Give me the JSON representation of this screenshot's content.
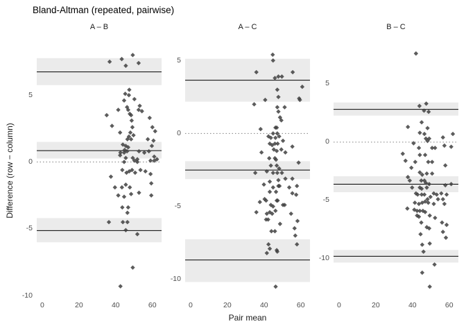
{
  "colors": {
    "background": "#ffffff",
    "point": "#404040",
    "ci_band": "#ebebeb",
    "loa_line": "#000000",
    "zero_line": "#7f7f7f",
    "axis_text": "#4d4d4d",
    "facet_text": "#1a1a1a",
    "title_text": "#000000"
  },
  "chart_data": {
    "type": "scatter",
    "title": "Bland-Altman (repeated, pairwise)",
    "xlabel": "Pair mean",
    "ylabel": "Difference (row − column)",
    "marker": "diamond",
    "grid": "off",
    "legend": "none",
    "xlim": [
      -3,
      65
    ],
    "x_ticks": [
      0,
      20,
      40,
      60
    ],
    "panels": [
      {
        "label": "A – B",
        "ylim": [
          -10.2,
          8.9
        ],
        "y_ticks": [
          5,
          0,
          -5,
          -10
        ],
        "zero_line": 0,
        "mean_line": {
          "value": 0.85,
          "ci": [
            0.26,
            1.5
          ]
        },
        "upper_loa": {
          "value": 6.74,
          "ci": [
            5.75,
            7.77
          ]
        },
        "lower_loa": {
          "value": -5.13,
          "ci": [
            -6.01,
            -4.2
          ]
        },
        "points": [
          [
            36.7,
            7.5
          ],
          [
            43.3,
            7.7
          ],
          [
            49.3,
            8.0
          ],
          [
            45.5,
            7.2
          ],
          [
            52.5,
            7.4
          ],
          [
            47.4,
            5.4
          ],
          [
            45.2,
            5.1
          ],
          [
            47.2,
            5.0
          ],
          [
            44.6,
            4.6
          ],
          [
            50.2,
            4.7
          ],
          [
            53.1,
            4.2
          ],
          [
            46.2,
            4.1
          ],
          [
            46.8,
            3.9
          ],
          [
            41.4,
            3.9
          ],
          [
            52.5,
            3.9
          ],
          [
            54.3,
            3.8
          ],
          [
            35.1,
            3.5
          ],
          [
            47.7,
            3.6
          ],
          [
            48.4,
            3.5
          ],
          [
            58.5,
            3.3
          ],
          [
            38.0,
            2.7
          ],
          [
            48.7,
            3.1
          ],
          [
            49.1,
            2.6
          ],
          [
            60.0,
            2.6
          ],
          [
            61.5,
            2.3
          ],
          [
            42.4,
            2.2
          ],
          [
            48.0,
            2.2
          ],
          [
            49.7,
            2.0
          ],
          [
            47.2,
            1.9
          ],
          [
            48.4,
            1.7
          ],
          [
            46.4,
            1.7
          ],
          [
            57.5,
            1.7
          ],
          [
            60.6,
            1.6
          ],
          [
            43.9,
            1.3
          ],
          [
            45.5,
            1.2
          ],
          [
            46.8,
            1.1
          ],
          [
            44.9,
            0.9
          ],
          [
            42.6,
            0.7
          ],
          [
            44.6,
            0.7
          ],
          [
            46.2,
            0.8
          ],
          [
            52.7,
            0.8
          ],
          [
            55.6,
            0.7
          ],
          [
            58.1,
            0.8
          ],
          [
            59.7,
            1.2
          ],
          [
            42.4,
            0.5
          ],
          [
            45.5,
            0.3
          ],
          [
            49.3,
            0.3
          ],
          [
            51.8,
            0.2
          ],
          [
            61.0,
            0.4
          ],
          [
            62.5,
            0.2
          ],
          [
            44.6,
            0.0
          ],
          [
            50.2,
            0.1
          ],
          [
            51.8,
            0.0
          ],
          [
            59.0,
            0.1
          ],
          [
            61.0,
            0.1
          ],
          [
            37.4,
            -1.1
          ],
          [
            43.6,
            -0.6
          ],
          [
            45.9,
            -0.8
          ],
          [
            47.4,
            -0.7
          ],
          [
            48.9,
            -0.6
          ],
          [
            50.6,
            -0.8
          ],
          [
            53.5,
            -0.6
          ],
          [
            56.2,
            -0.7
          ],
          [
            59.0,
            -0.9
          ],
          [
            39.6,
            -1.9
          ],
          [
            43.4,
            -1.9
          ],
          [
            45.5,
            -1.7
          ],
          [
            47.7,
            -1.9
          ],
          [
            52.7,
            -2.3
          ],
          [
            59.4,
            -1.6
          ],
          [
            41.4,
            -2.5
          ],
          [
            44.6,
            -2.6
          ],
          [
            48.4,
            -2.4
          ],
          [
            59.4,
            -2.5
          ],
          [
            43.6,
            -3.4
          ],
          [
            46.8,
            -3.4
          ],
          [
            46.4,
            -3.8
          ],
          [
            36.3,
            -4.5
          ],
          [
            43.9,
            -4.5
          ],
          [
            46.4,
            -4.5
          ],
          [
            45.5,
            -5.1
          ],
          [
            51.8,
            -5.4
          ],
          [
            49.3,
            -7.9
          ],
          [
            42.6,
            -9.3
          ]
        ]
      },
      {
        "label": "A – C",
        "ylim": [
          -11.3,
          6.2
        ],
        "y_ticks": [
          5,
          0,
          -5,
          -10
        ],
        "zero_line": 0,
        "mean_line": {
          "value": -2.51,
          "ci": [
            -3.13,
            -1.9
          ]
        },
        "upper_loa": {
          "value": 3.65,
          "ci": [
            2.18,
            5.12
          ]
        },
        "lower_loa": {
          "value": -8.67,
          "ci": [
            -10.18,
            -7.25
          ]
        },
        "points": [
          [
            44.7,
            5.4
          ],
          [
            44.9,
            5.0
          ],
          [
            35.8,
            4.2
          ],
          [
            55.6,
            4.2
          ],
          [
            45.9,
            3.8
          ],
          [
            47.8,
            3.9
          ],
          [
            49.7,
            3.9
          ],
          [
            60.8,
            3.2
          ],
          [
            47.2,
            3.0
          ],
          [
            47.8,
            2.5
          ],
          [
            59.1,
            2.4
          ],
          [
            34.6,
            2.0
          ],
          [
            40.6,
            2.3
          ],
          [
            59.5,
            2.3
          ],
          [
            47.2,
            1.8
          ],
          [
            51.2,
            1.8
          ],
          [
            47.8,
            1.5
          ],
          [
            48.7,
            1.1
          ],
          [
            49.4,
            0.9
          ],
          [
            38.1,
            0.3
          ],
          [
            46.2,
            0.4
          ],
          [
            46.9,
            0.4
          ],
          [
            44.9,
            0.0
          ],
          [
            47.2,
            0.0
          ],
          [
            42.4,
            -0.2
          ],
          [
            43.7,
            -0.3
          ],
          [
            46.2,
            -0.3
          ],
          [
            48.2,
            -0.2
          ],
          [
            50.3,
            -0.5
          ],
          [
            43.1,
            -0.7
          ],
          [
            44.4,
            -0.8
          ],
          [
            45.9,
            -0.7
          ],
          [
            47.4,
            -0.7
          ],
          [
            55.4,
            -0.9
          ],
          [
            38.6,
            -1.3
          ],
          [
            45.3,
            -1.1
          ],
          [
            46.9,
            -1.2
          ],
          [
            49.4,
            -1.1
          ],
          [
            51.6,
            -1.3
          ],
          [
            42.8,
            -1.7
          ],
          [
            45.9,
            -1.7
          ],
          [
            46.5,
            -1.8
          ],
          [
            58.8,
            -2.0
          ],
          [
            43.7,
            -2.2
          ],
          [
            46.9,
            -2.2
          ],
          [
            48.2,
            -2.4
          ],
          [
            35.2,
            -2.7
          ],
          [
            41.5,
            -2.6
          ],
          [
            44.9,
            -2.7
          ],
          [
            47.2,
            -2.7
          ],
          [
            49.7,
            -2.7
          ],
          [
            43.1,
            -3.3
          ],
          [
            47.8,
            -3.2
          ],
          [
            51.6,
            -3.1
          ],
          [
            55.4,
            -3.1
          ],
          [
            39.9,
            -3.5
          ],
          [
            44.9,
            -3.7
          ],
          [
            47.8,
            -3.6
          ],
          [
            48.4,
            -3.6
          ],
          [
            53.7,
            -3.7
          ],
          [
            57.9,
            -3.6
          ],
          [
            43.1,
            -4.0
          ],
          [
            46.5,
            -4.0
          ],
          [
            55.4,
            -4.1
          ],
          [
            57.5,
            -4.2
          ],
          [
            37.7,
            -4.7
          ],
          [
            40.3,
            -4.5
          ],
          [
            41.1,
            -4.6
          ],
          [
            43.7,
            -4.9
          ],
          [
            44.9,
            -5.0
          ],
          [
            46.9,
            -4.6
          ],
          [
            47.4,
            -4.6
          ],
          [
            50.3,
            -4.9
          ],
          [
            51.2,
            -4.9
          ],
          [
            35.8,
            -5.4
          ],
          [
            41.5,
            -5.5
          ],
          [
            43.1,
            -5.4
          ],
          [
            44.4,
            -5.5
          ],
          [
            46.2,
            -5.3
          ],
          [
            54.7,
            -5.5
          ],
          [
            41.1,
            -5.9
          ],
          [
            42.2,
            -5.9
          ],
          [
            58.2,
            -6.0
          ],
          [
            48.7,
            -6.2
          ],
          [
            56.6,
            -6.5
          ],
          [
            44.0,
            -6.7
          ],
          [
            45.9,
            -6.7
          ],
          [
            57.0,
            -7.0
          ],
          [
            57.9,
            -7.6
          ],
          [
            42.4,
            -7.6
          ],
          [
            43.1,
            -7.9
          ],
          [
            46.9,
            -8.0
          ],
          [
            41.5,
            -8.2
          ],
          [
            47.2,
            -8.1
          ],
          [
            46.3,
            -10.5
          ]
        ]
      },
      {
        "label": "B – C",
        "ylim": [
          -13.4,
          8.5
        ],
        "y_ticks": [
          5,
          0,
          -5,
          -10
        ],
        "zero_line": 0,
        "mean_line": {
          "value": -3.61,
          "ci": [
            -4.3,
            -2.93
          ]
        },
        "upper_loa": {
          "value": 2.81,
          "ci": [
            2.27,
            3.4
          ]
        },
        "lower_loa": {
          "value": -9.79,
          "ci": [
            -10.33,
            -9.25
          ]
        },
        "points": [
          [
            41.9,
            7.6
          ],
          [
            43.8,
            3.1
          ],
          [
            47.5,
            3.3
          ],
          [
            46.3,
            2.7
          ],
          [
            48.8,
            2.6
          ],
          [
            45.0,
            1.7
          ],
          [
            37.5,
            1.3
          ],
          [
            48.2,
            1.2
          ],
          [
            44.0,
            0.8
          ],
          [
            46.5,
            0.7
          ],
          [
            47.3,
            0.3
          ],
          [
            48.2,
            0.1
          ],
          [
            49.1,
            0.3
          ],
          [
            56.6,
            0.4
          ],
          [
            62.0,
            0.7
          ],
          [
            57.4,
            -0.3
          ],
          [
            61.1,
            -0.4
          ],
          [
            40.6,
            -0.1
          ],
          [
            43.5,
            -0.5
          ],
          [
            50.7,
            -0.5
          ],
          [
            52.3,
            -0.5
          ],
          [
            34.7,
            -1.0
          ],
          [
            44.0,
            -1.1
          ],
          [
            46.9,
            -1.1
          ],
          [
            36.2,
            -1.6
          ],
          [
            41.5,
            -1.7
          ],
          [
            48.6,
            -1.7
          ],
          [
            50.7,
            -1.7
          ],
          [
            57.9,
            -2.0
          ],
          [
            39.4,
            -2.2
          ],
          [
            44.0,
            -2.6
          ],
          [
            45.3,
            -2.8
          ],
          [
            47.8,
            -2.7
          ],
          [
            50.7,
            -2.7
          ],
          [
            37.5,
            -3.0
          ],
          [
            38.5,
            -3.3
          ],
          [
            44.8,
            -3.3
          ],
          [
            46.5,
            -3.3
          ],
          [
            47.3,
            -3.5
          ],
          [
            49.1,
            -3.6
          ],
          [
            57.9,
            -3.7
          ],
          [
            61.1,
            -3.6
          ],
          [
            39.8,
            -3.9
          ],
          [
            44.0,
            -3.9
          ],
          [
            45.0,
            -4.0
          ],
          [
            47.8,
            -3.9
          ],
          [
            41.9,
            -4.4
          ],
          [
            42.8,
            -4.5
          ],
          [
            45.0,
            -4.5
          ],
          [
            46.5,
            -4.5
          ],
          [
            48.2,
            -4.9
          ],
          [
            49.8,
            -4.7
          ],
          [
            51.6,
            -4.4
          ],
          [
            53.2,
            -4.5
          ],
          [
            55.7,
            -4.4
          ],
          [
            58.6,
            -4.5
          ],
          [
            53.9,
            -4.9
          ],
          [
            56.6,
            -4.9
          ],
          [
            41.3,
            -5.2
          ],
          [
            43.5,
            -5.3
          ],
          [
            45.3,
            -5.2
          ],
          [
            46.9,
            -5.1
          ],
          [
            48.6,
            -5.2
          ],
          [
            51.6,
            -5.3
          ],
          [
            57.4,
            -5.3
          ],
          [
            37.2,
            -5.7
          ],
          [
            41.0,
            -5.8
          ],
          [
            42.5,
            -5.9
          ],
          [
            44.0,
            -5.9
          ],
          [
            45.7,
            -5.9
          ],
          [
            46.9,
            -6.0
          ],
          [
            42.5,
            -6.3
          ],
          [
            43.5,
            -6.4
          ],
          [
            49.4,
            -6.3
          ],
          [
            52.3,
            -6.5
          ],
          [
            44.8,
            -6.9
          ],
          [
            56.1,
            -6.9
          ],
          [
            58.6,
            -7.1
          ],
          [
            47.8,
            -7.3
          ],
          [
            49.1,
            -7.4
          ],
          [
            44.4,
            -7.9
          ],
          [
            56.6,
            -7.7
          ],
          [
            58.2,
            -8.2
          ],
          [
            45.3,
            -8.8
          ],
          [
            49.4,
            -8.7
          ],
          [
            46.0,
            -9.4
          ],
          [
            52.0,
            -10.5
          ],
          [
            45.3,
            -11.2
          ],
          [
            49.4,
            -12.4
          ]
        ]
      }
    ]
  }
}
